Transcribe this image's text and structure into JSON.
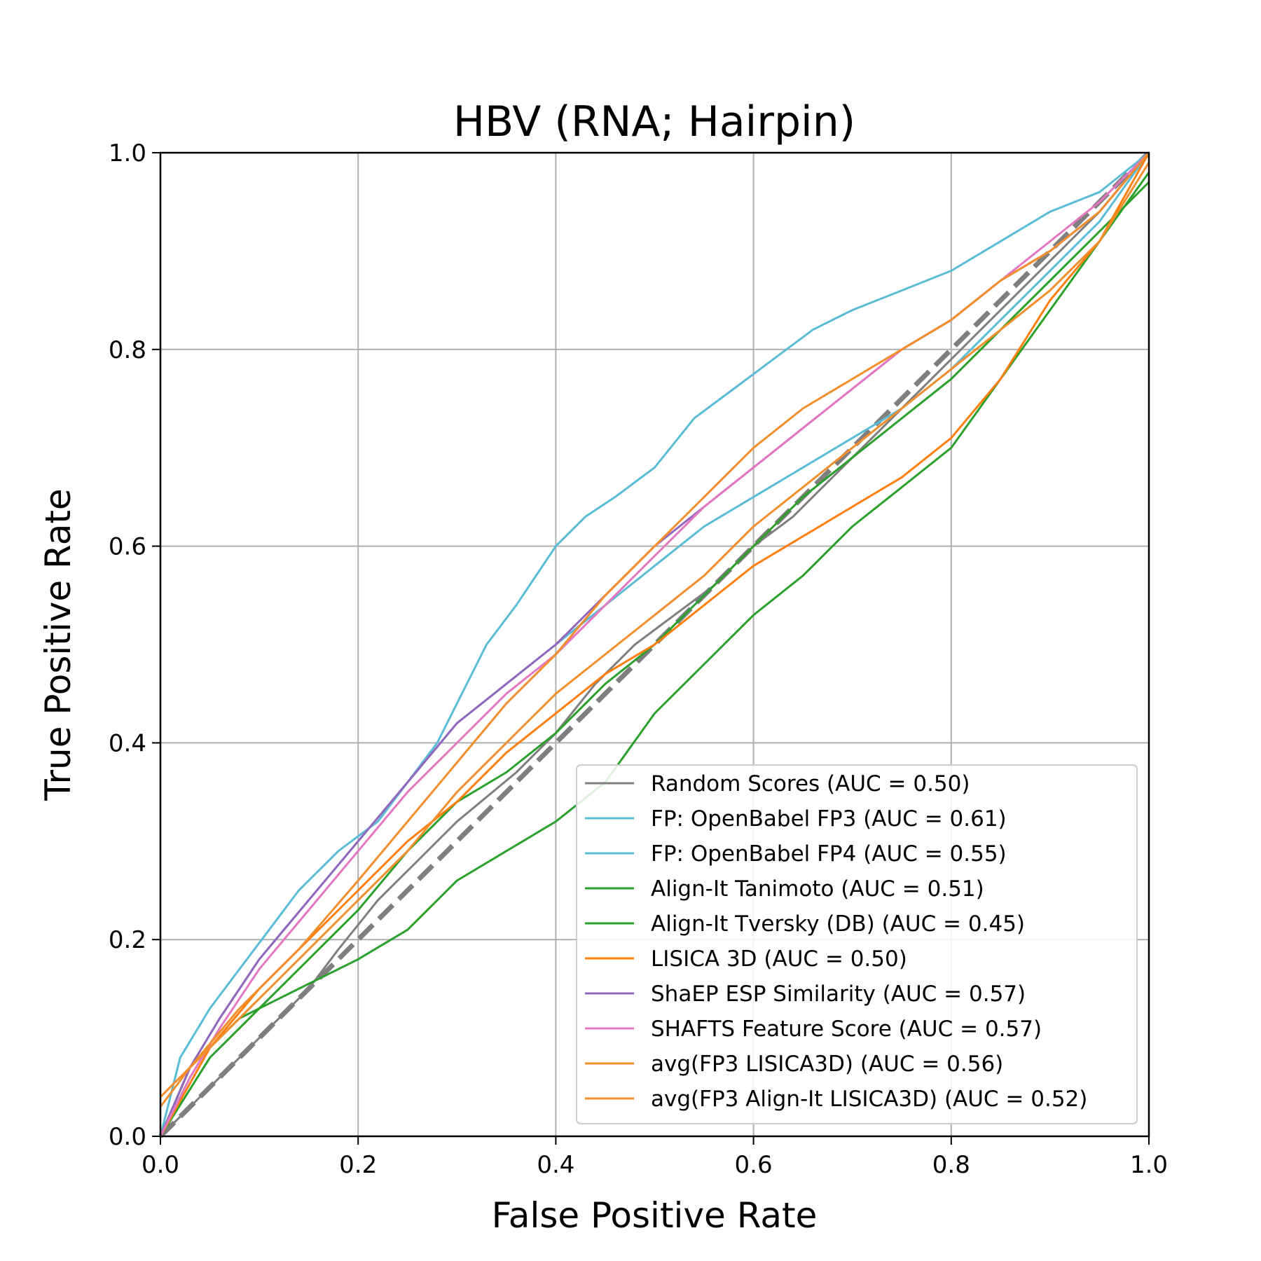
{
  "chart_data": {
    "type": "line",
    "title": "HBV (RNA; Hairpin)",
    "xlabel": "False Positive Rate",
    "ylabel": "True Positive Rate",
    "xlim": [
      0.0,
      1.0
    ],
    "ylim": [
      0.0,
      1.0
    ],
    "xticks": [
      "0.0",
      "0.2",
      "0.4",
      "0.6",
      "0.8",
      "1.0"
    ],
    "yticks": [
      "0.0",
      "0.2",
      "0.4",
      "0.6",
      "0.8",
      "1.0"
    ],
    "grid": true,
    "legend_position": "lower-right",
    "diagonal": {
      "x": [
        0,
        1
      ],
      "y": [
        0,
        1
      ],
      "color": "#7f7f7f",
      "style": "dashed"
    },
    "series": [
      {
        "name": "Random Scores (AUC = 0.50)",
        "color": "#7f7f7f",
        "x": [
          0,
          0.05,
          0.1,
          0.15,
          0.18,
          0.22,
          0.26,
          0.3,
          0.36,
          0.4,
          0.44,
          0.48,
          0.52,
          0.56,
          0.6,
          0.64,
          0.7,
          0.75,
          0.8,
          0.85,
          0.9,
          0.95,
          1.0
        ],
        "y": [
          0,
          0.05,
          0.1,
          0.15,
          0.19,
          0.24,
          0.28,
          0.32,
          0.37,
          0.41,
          0.46,
          0.5,
          0.53,
          0.56,
          0.6,
          0.63,
          0.69,
          0.74,
          0.79,
          0.84,
          0.89,
          0.94,
          1.0
        ]
      },
      {
        "name": "FP: OpenBabel FP3 (AUC = 0.61)",
        "color": "#5bbcd6",
        "x": [
          0,
          0.02,
          0.05,
          0.08,
          0.11,
          0.14,
          0.18,
          0.22,
          0.25,
          0.28,
          0.3,
          0.33,
          0.36,
          0.4,
          0.43,
          0.46,
          0.5,
          0.54,
          0.58,
          0.62,
          0.66,
          0.7,
          0.75,
          0.8,
          0.85,
          0.9,
          0.95,
          1.0
        ],
        "y": [
          0,
          0.08,
          0.13,
          0.17,
          0.21,
          0.25,
          0.29,
          0.32,
          0.36,
          0.4,
          0.44,
          0.5,
          0.54,
          0.6,
          0.63,
          0.65,
          0.68,
          0.73,
          0.76,
          0.79,
          0.82,
          0.84,
          0.86,
          0.88,
          0.91,
          0.94,
          0.96,
          1.0
        ]
      },
      {
        "name": "FP: OpenBabel FP4 (AUC = 0.55)",
        "color": "#5bbcd6",
        "x": [
          0,
          0.03,
          0.06,
          0.1,
          0.15,
          0.2,
          0.25,
          0.3,
          0.35,
          0.4,
          0.45,
          0.5,
          0.55,
          0.6,
          0.65,
          0.7,
          0.75,
          0.8,
          0.85,
          0.9,
          0.95,
          1.0
        ],
        "y": [
          0,
          0.07,
          0.12,
          0.18,
          0.24,
          0.3,
          0.36,
          0.42,
          0.46,
          0.5,
          0.54,
          0.58,
          0.62,
          0.65,
          0.68,
          0.71,
          0.74,
          0.78,
          0.83,
          0.88,
          0.93,
          1.0
        ]
      },
      {
        "name": "Align-It Tanimoto (AUC = 0.51)",
        "color": "#2ca02c",
        "x": [
          0,
          0.05,
          0.1,
          0.15,
          0.2,
          0.25,
          0.3,
          0.35,
          0.4,
          0.45,
          0.5,
          0.55,
          0.6,
          0.65,
          0.7,
          0.75,
          0.8,
          0.85,
          0.9,
          0.95,
          1.0
        ],
        "y": [
          0,
          0.08,
          0.13,
          0.18,
          0.23,
          0.29,
          0.34,
          0.37,
          0.41,
          0.46,
          0.5,
          0.55,
          0.6,
          0.65,
          0.69,
          0.73,
          0.77,
          0.82,
          0.87,
          0.92,
          0.97
        ]
      },
      {
        "name": "Align-It Tversky (DB) (AUC = 0.45)",
        "color": "#2ca02c",
        "x": [
          0,
          0.03,
          0.08,
          0.14,
          0.2,
          0.25,
          0.3,
          0.35,
          0.4,
          0.45,
          0.5,
          0.55,
          0.6,
          0.65,
          0.7,
          0.75,
          0.8,
          0.85,
          0.9,
          0.95,
          1.0
        ],
        "y": [
          0,
          0.07,
          0.12,
          0.15,
          0.18,
          0.21,
          0.26,
          0.29,
          0.32,
          0.36,
          0.43,
          0.48,
          0.53,
          0.57,
          0.62,
          0.66,
          0.7,
          0.77,
          0.84,
          0.91,
          0.98
        ]
      },
      {
        "name": "LISICA 3D (AUC = 0.50)",
        "color": "#ff7f0e",
        "x": [
          0,
          0.05,
          0.1,
          0.15,
          0.2,
          0.25,
          0.3,
          0.35,
          0.4,
          0.45,
          0.5,
          0.55,
          0.6,
          0.65,
          0.7,
          0.75,
          0.8,
          0.85,
          0.9,
          0.95,
          1.0
        ],
        "y": [
          0,
          0.09,
          0.15,
          0.2,
          0.25,
          0.3,
          0.34,
          0.39,
          0.43,
          0.47,
          0.5,
          0.54,
          0.58,
          0.61,
          0.64,
          0.67,
          0.71,
          0.77,
          0.85,
          0.91,
          1.0
        ]
      },
      {
        "name": "ShaEP ESP Similarity (AUC = 0.57)",
        "color": "#9467bd",
        "x": [
          0,
          0.03,
          0.06,
          0.1,
          0.15,
          0.2,
          0.25,
          0.3,
          0.35,
          0.4,
          0.45,
          0.5,
          0.55,
          0.6,
          0.65,
          0.7,
          0.75,
          0.8,
          0.85,
          0.9,
          0.95,
          1.0
        ],
        "y": [
          0,
          0.07,
          0.12,
          0.18,
          0.24,
          0.3,
          0.36,
          0.42,
          0.46,
          0.5,
          0.55,
          0.6,
          0.64,
          0.68,
          0.72,
          0.76,
          0.8,
          0.83,
          0.87,
          0.9,
          0.94,
          1.0
        ]
      },
      {
        "name": "SHAFTS Feature Score (AUC = 0.57)",
        "color": "#e377c2",
        "x": [
          0,
          0.03,
          0.06,
          0.1,
          0.15,
          0.2,
          0.25,
          0.3,
          0.35,
          0.4,
          0.45,
          0.5,
          0.55,
          0.6,
          0.65,
          0.7,
          0.75,
          0.8,
          0.85,
          0.9,
          0.95,
          1.0
        ],
        "y": [
          0,
          0.06,
          0.11,
          0.17,
          0.23,
          0.29,
          0.35,
          0.4,
          0.45,
          0.49,
          0.54,
          0.59,
          0.64,
          0.68,
          0.72,
          0.76,
          0.8,
          0.83,
          0.87,
          0.91,
          0.95,
          1.0
        ]
      },
      {
        "name": "avg(FP3 LISICA3D) (AUC = 0.56)",
        "color": "#f28e2b",
        "x": [
          0,
          0.03,
          0.08,
          0.14,
          0.2,
          0.25,
          0.3,
          0.35,
          0.4,
          0.45,
          0.5,
          0.55,
          0.6,
          0.65,
          0.7,
          0.75,
          0.8,
          0.85,
          0.9,
          0.95,
          1.0
        ],
        "y": [
          0.03,
          0.07,
          0.13,
          0.19,
          0.26,
          0.32,
          0.38,
          0.44,
          0.49,
          0.55,
          0.6,
          0.65,
          0.7,
          0.74,
          0.77,
          0.8,
          0.83,
          0.87,
          0.9,
          0.94,
          1.0
        ]
      },
      {
        "name": "avg(FP3 Align-It LISICA3D) (AUC = 0.52)",
        "color": "#f28e2b",
        "x": [
          0,
          0.03,
          0.08,
          0.14,
          0.2,
          0.25,
          0.3,
          0.35,
          0.4,
          0.45,
          0.5,
          0.55,
          0.6,
          0.65,
          0.7,
          0.75,
          0.8,
          0.85,
          0.9,
          0.95,
          1.0
        ],
        "y": [
          0.04,
          0.07,
          0.12,
          0.18,
          0.24,
          0.29,
          0.35,
          0.4,
          0.45,
          0.49,
          0.53,
          0.57,
          0.62,
          0.66,
          0.7,
          0.74,
          0.78,
          0.82,
          0.86,
          0.91,
          0.99
        ]
      }
    ]
  }
}
